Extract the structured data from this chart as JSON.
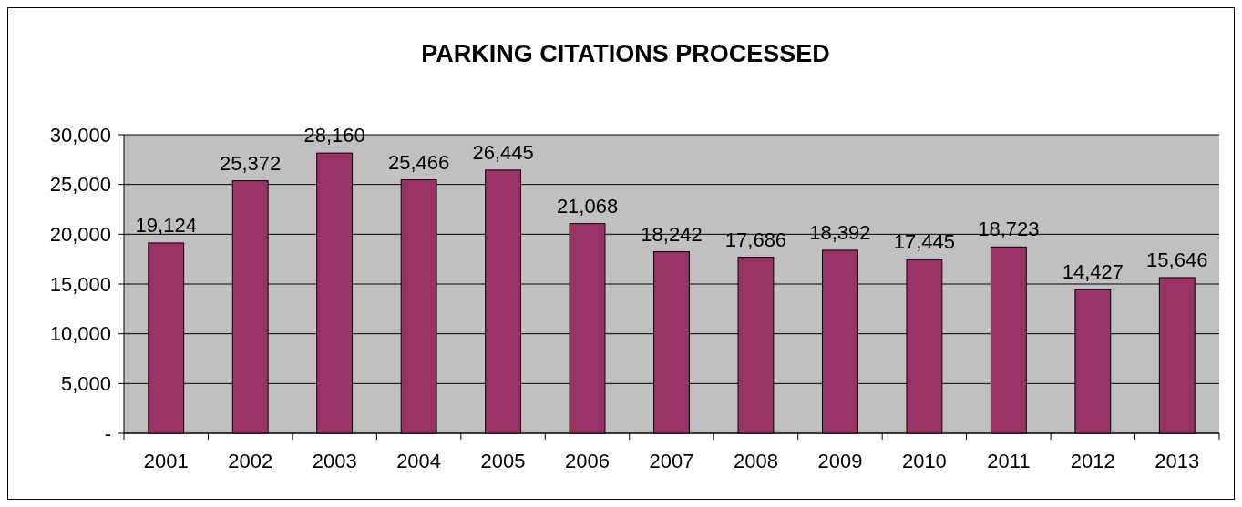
{
  "chart_data": {
    "type": "bar",
    "title": "PARKING CITATIONS PROCESSED",
    "categories": [
      "2001",
      "2002",
      "2003",
      "2004",
      "2005",
      "2006",
      "2007",
      "2008",
      "2009",
      "2010",
      "2011",
      "2012",
      "2013"
    ],
    "values": [
      19124,
      25372,
      28160,
      25466,
      26445,
      21068,
      18242,
      17686,
      18392,
      17445,
      18723,
      14427,
      15646
    ],
    "value_labels": [
      "19,124",
      "25,372",
      "28,160",
      "25,466",
      "26,445",
      "21,068",
      "18,242",
      "17,686",
      "18,392",
      "17,445",
      "18,723",
      "14,427",
      "15,646"
    ],
    "color": "#993366",
    "ylim": [
      0,
      30000
    ],
    "yticks": [
      {
        "value": 0,
        "label": "-"
      },
      {
        "value": 5000,
        "label": "5,000"
      },
      {
        "value": 10000,
        "label": "10,000"
      },
      {
        "value": 15000,
        "label": "15,000"
      },
      {
        "value": 20000,
        "label": "20,000"
      },
      {
        "value": 25000,
        "label": "25,000"
      },
      {
        "value": 30000,
        "label": "30,000"
      }
    ],
    "grid": "y"
  }
}
